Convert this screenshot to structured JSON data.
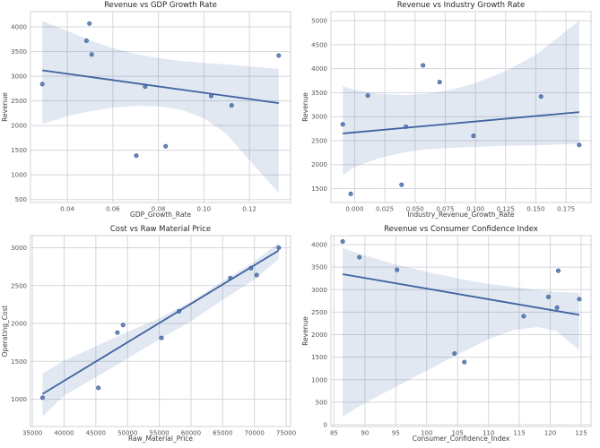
{
  "figure": {
    "background": "#ffffff"
  },
  "colors": {
    "point": "#4c72b0",
    "point_edge": "#39598f",
    "line": "#3f62a0",
    "band_fill": "#4c72b0",
    "band_alpha": 0.16,
    "grid": "#d5d7dc",
    "spine": "#cfd3da",
    "title_text": "#262626",
    "tick_text": "#555555",
    "label_text": "#3c3c3c"
  },
  "chart_data": [
    {
      "type": "scatter",
      "title": "Revenue vs GDP Growth Rate",
      "xlabel": "GDP_Growth_Rate",
      "ylabel": "Revenue",
      "xlim": [
        0.0238,
        0.1381
      ],
      "ylim": [
        440,
        4310
      ],
      "xticks": [
        0.04,
        0.06,
        0.08,
        0.1,
        0.12
      ],
      "xtick_labels": [
        "0.04",
        "0.06",
        "0.08",
        "0.10",
        "0.12"
      ],
      "yticks": [
        500,
        1000,
        1500,
        2000,
        2500,
        3000,
        3500,
        4000
      ],
      "ytick_labels": [
        "500",
        "1000",
        "1500",
        "2000",
        "2500",
        "3000",
        "3500",
        "4000"
      ],
      "grid": true,
      "points": [
        [
          0.029,
          2840
        ],
        [
          0.0484,
          3720
        ],
        [
          0.0497,
          4070
        ],
        [
          0.0507,
          3440
        ],
        [
          0.0703,
          1390
        ],
        [
          0.0742,
          2790
        ],
        [
          0.0832,
          1580
        ],
        [
          0.1032,
          2600
        ],
        [
          0.1122,
          2410
        ],
        [
          0.1329,
          3420
        ]
      ],
      "regression_line": {
        "x": [
          0.029,
          0.1329
        ],
        "y": [
          3120,
          2455
        ]
      },
      "confidence_band": {
        "x": [
          0.029,
          0.04,
          0.05,
          0.06,
          0.07,
          0.08,
          0.09,
          0.1,
          0.11,
          0.12,
          0.1329
        ],
        "upper": [
          4125,
          3920,
          3730,
          3570,
          3450,
          3370,
          3310,
          3270,
          3240,
          3200,
          3150
        ],
        "lower": [
          2035,
          2190,
          2290,
          2360,
          2400,
          2390,
          2320,
          2150,
          1830,
          1300,
          630
        ]
      }
    },
    {
      "type": "scatter",
      "title": "Revenue vs Industry Growth Rate",
      "xlabel": "Industry_Revenue_Growth_Rate",
      "ylabel": "Revenue",
      "xlim": [
        -0.0196,
        0.1957
      ],
      "ylim": [
        1210,
        5190
      ],
      "xticks": [
        0.0,
        0.025,
        0.05,
        0.075,
        0.1,
        0.125,
        0.15,
        0.175
      ],
      "xtick_labels": [
        "0.000",
        "0.025",
        "0.050",
        "0.075",
        "0.100",
        "0.125",
        "0.150",
        "0.175"
      ],
      "yticks": [
        1500,
        2000,
        2500,
        3000,
        3500,
        4000,
        4500,
        5000
      ],
      "ytick_labels": [
        "1500",
        "2000",
        "2500",
        "3000",
        "3500",
        "4000",
        "4500",
        "5000"
      ],
      "grid": true,
      "points": [
        [
          -0.0098,
          2840
        ],
        [
          -0.0032,
          1390
        ],
        [
          0.0109,
          3440
        ],
        [
          0.0389,
          1580
        ],
        [
          0.0425,
          2790
        ],
        [
          0.0566,
          4070
        ],
        [
          0.0704,
          3720
        ],
        [
          0.0984,
          2600
        ],
        [
          0.1543,
          3420
        ],
        [
          0.1859,
          2410
        ]
      ],
      "regression_line": {
        "x": [
          -0.0098,
          0.1859
        ],
        "y": [
          2650,
          3095
        ]
      },
      "confidence_band": {
        "x": [
          -0.0098,
          0.0,
          0.02,
          0.04,
          0.06,
          0.08,
          0.1,
          0.125,
          0.15,
          0.17,
          0.1859
        ],
        "upper": [
          3630,
          3560,
          3480,
          3450,
          3480,
          3560,
          3700,
          3950,
          4290,
          4680,
          5010
        ],
        "lower": [
          1780,
          1950,
          2130,
          2250,
          2320,
          2350,
          2370,
          2390,
          2400,
          2420,
          2430
        ]
      }
    },
    {
      "type": "scatter",
      "title": "Cost vs Raw Material Price",
      "xlabel": "Raw_Material_Price",
      "ylabel": "Operating_Cost",
      "xlim": [
        34700,
        75700
      ],
      "ylim": [
        640,
        3160
      ],
      "xticks": [
        35000,
        40000,
        45000,
        50000,
        55000,
        60000,
        65000,
        70000,
        75000
      ],
      "xtick_labels": [
        "35000",
        "40000",
        "45000",
        "50000",
        "55000",
        "60000",
        "65000",
        "70000",
        "75000"
      ],
      "yticks": [
        1000,
        1500,
        2000,
        2500,
        3000
      ],
      "ytick_labels": [
        "1000",
        "1500",
        "2000",
        "2500",
        "3000"
      ],
      "grid": true,
      "points": [
        [
          36600,
          1020
        ],
        [
          45400,
          1150
        ],
        [
          48400,
          1880
        ],
        [
          49300,
          1980
        ],
        [
          55350,
          1810
        ],
        [
          58100,
          2160
        ],
        [
          66200,
          2600
        ],
        [
          69450,
          2730
        ],
        [
          70350,
          2640
        ],
        [
          73840,
          3000
        ]
      ],
      "regression_line": {
        "x": [
          36600,
          73840
        ],
        "y": [
          1070,
          2965
        ]
      },
      "confidence_band": {
        "x": [
          36600,
          40000,
          45000,
          50000,
          55000,
          60000,
          65000,
          70000,
          73840
        ],
        "upper": [
          1340,
          1510,
          1700,
          1890,
          2070,
          2290,
          2560,
          2820,
          3070
        ],
        "lower": [
          770,
          1050,
          1290,
          1540,
          1790,
          2030,
          2310,
          2580,
          2850
        ]
      }
    },
    {
      "type": "scatter",
      "title": "Revenue vs Consumer Confidence Index",
      "xlabel": "Consumer_Confidence_Index",
      "ylabel": "Revenue",
      "xlim": [
        84.5,
        126.6
      ],
      "ylim": [
        -40,
        4200
      ],
      "xticks": [
        85,
        90,
        95,
        100,
        105,
        110,
        115,
        120,
        125
      ],
      "xtick_labels": [
        "85",
        "90",
        "95",
        "100",
        "105",
        "110",
        "115",
        "120",
        "125"
      ],
      "yticks": [
        0,
        500,
        1000,
        1500,
        2000,
        2500,
        3000,
        3500,
        4000
      ],
      "ytick_labels": [
        "0",
        "500",
        "1000",
        "1500",
        "2000",
        "2500",
        "3000",
        "3500",
        "4000"
      ],
      "grid": true,
      "points": [
        [
          86.4,
          4070
        ],
        [
          89.1,
          3720
        ],
        [
          95.2,
          3440
        ],
        [
          104.5,
          1580
        ],
        [
          106.1,
          1390
        ],
        [
          115.7,
          2410
        ],
        [
          119.7,
          2840
        ],
        [
          121.1,
          2600
        ],
        [
          121.3,
          3420
        ],
        [
          124.7,
          2790
        ]
      ],
      "regression_line": {
        "x": [
          86.4,
          124.7
        ],
        "y": [
          3345,
          2440
        ]
      },
      "confidence_band": {
        "x": [
          86.4,
          90,
          95,
          100,
          105,
          110,
          114,
          118,
          121,
          124.7
        ],
        "upper": [
          3930,
          3760,
          3560,
          3400,
          3250,
          3130,
          3060,
          2990,
          2950,
          2930
        ],
        "lower": [
          180,
          480,
          840,
          1200,
          1560,
          1900,
          2100,
          2170,
          2080,
          1660
        ]
      }
    }
  ]
}
